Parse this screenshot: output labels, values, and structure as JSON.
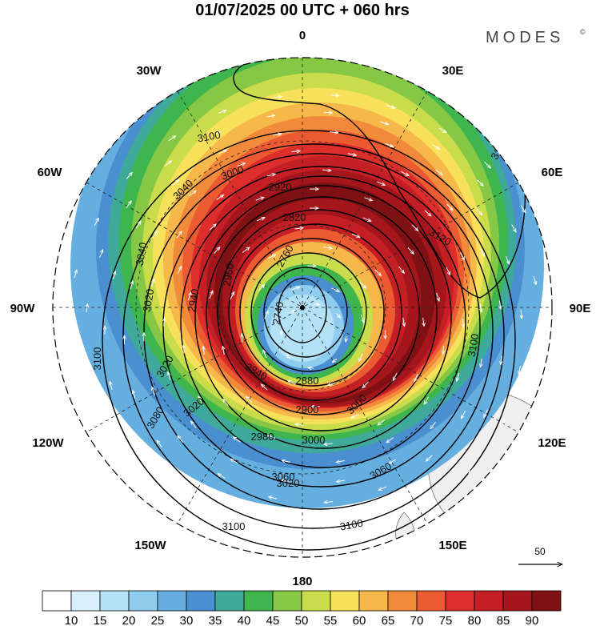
{
  "title": "01/07/2025  00 UTC  + 060 hrs",
  "brand": "MODES",
  "brand_mark": "©",
  "longitudes": [
    "0",
    "30E",
    "60E",
    "90E",
    "120E",
    "150E",
    "180",
    "150W",
    "120W",
    "90W",
    "60W",
    "30W"
  ],
  "contour_labels": [
    "2740",
    "2760",
    "2820",
    "2840",
    "2880",
    "2900",
    "2920",
    "2940",
    "2960",
    "2980",
    "3000",
    "3020",
    "3040",
    "3060",
    "3080",
    "3100",
    "3120"
  ],
  "vector_reference": "50",
  "colorbar": {
    "labels": [
      "10",
      "15",
      "20",
      "25",
      "30",
      "35",
      "40",
      "45",
      "50",
      "55",
      "60",
      "65",
      "70",
      "75",
      "80",
      "85",
      "90"
    ],
    "colors": [
      "#ffffff",
      "#d7f0fb",
      "#b3e1f6",
      "#8fcdef",
      "#65afe0",
      "#4a8fcf",
      "#3fa99a",
      "#3fb54e",
      "#86c845",
      "#c9dc4c",
      "#f8e15a",
      "#f6b84a",
      "#f18a3a",
      "#eb5a31",
      "#dc2e2b",
      "#c41f25",
      "#a4161c",
      "#7f1013"
    ]
  }
}
